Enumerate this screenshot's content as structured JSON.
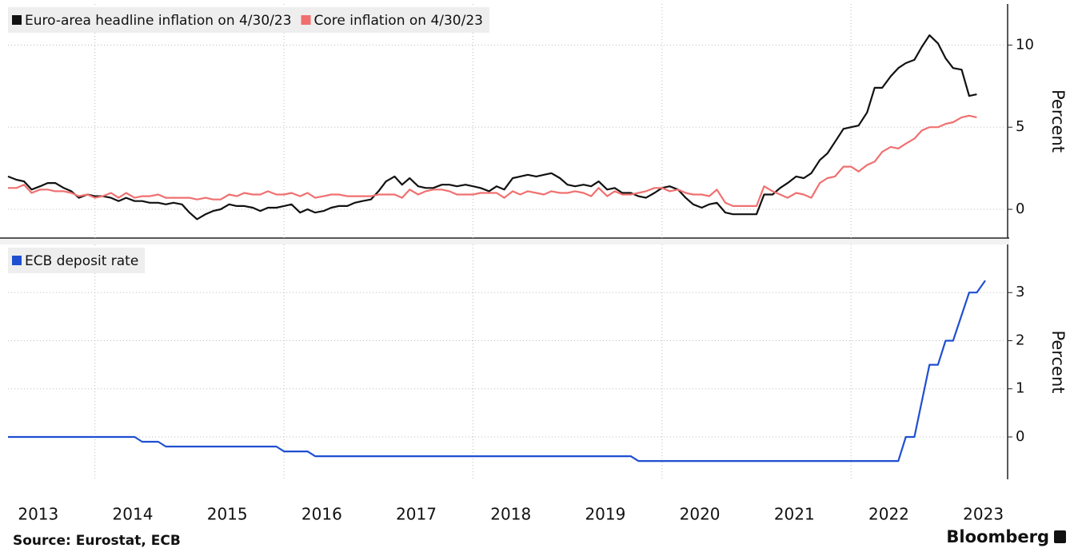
{
  "chart_data": [
    {
      "type": "line",
      "ylabel": "Percent",
      "ylim": [
        -1.75,
        12.5
      ],
      "yticks": [
        0,
        5,
        10
      ],
      "grid": true,
      "xlim": [
        2013.08,
        2023.64
      ],
      "xgrid": [
        2014,
        2016,
        2018,
        2020,
        2022
      ],
      "x": [
        2013.08,
        2013.17,
        2013.25,
        2013.33,
        2013.42,
        2013.5,
        2013.58,
        2013.67,
        2013.75,
        2013.83,
        2013.92,
        2014,
        2014.08,
        2014.17,
        2014.25,
        2014.33,
        2014.42,
        2014.5,
        2014.58,
        2014.67,
        2014.75,
        2014.83,
        2014.92,
        2015,
        2015.08,
        2015.17,
        2015.25,
        2015.33,
        2015.42,
        2015.5,
        2015.58,
        2015.67,
        2015.75,
        2015.83,
        2015.92,
        2016,
        2016.08,
        2016.17,
        2016.25,
        2016.33,
        2016.42,
        2016.5,
        2016.58,
        2016.67,
        2016.75,
        2016.83,
        2016.92,
        2017,
        2017.08,
        2017.17,
        2017.25,
        2017.33,
        2017.42,
        2017.5,
        2017.58,
        2017.67,
        2017.75,
        2017.83,
        2017.92,
        2018,
        2018.08,
        2018.17,
        2018.25,
        2018.33,
        2018.42,
        2018.5,
        2018.58,
        2018.67,
        2018.75,
        2018.83,
        2018.92,
        2019,
        2019.08,
        2019.17,
        2019.25,
        2019.33,
        2019.42,
        2019.5,
        2019.58,
        2019.67,
        2019.75,
        2019.83,
        2019.92,
        2020,
        2020.08,
        2020.17,
        2020.25,
        2020.33,
        2020.42,
        2020.5,
        2020.58,
        2020.67,
        2020.75,
        2020.83,
        2020.92,
        2021,
        2021.08,
        2021.17,
        2021.25,
        2021.33,
        2021.42,
        2021.5,
        2021.58,
        2021.67,
        2021.75,
        2021.83,
        2021.92,
        2022,
        2022.08,
        2022.17,
        2022.25,
        2022.33,
        2022.42,
        2022.5,
        2022.58,
        2022.67,
        2022.75,
        2022.83,
        2022.92,
        2023,
        2023.08,
        2023.17,
        2023.25,
        2023.33
      ],
      "series": [
        {
          "name": "Euro-area headline inflation on 4/30/23",
          "color": "#111111",
          "values": [
            2.0,
            1.8,
            1.7,
            1.2,
            1.4,
            1.6,
            1.6,
            1.3,
            1.1,
            0.7,
            0.9,
            0.8,
            0.8,
            0.7,
            0.5,
            0.7,
            0.5,
            0.5,
            0.4,
            0.4,
            0.3,
            0.4,
            0.3,
            -0.2,
            -0.6,
            -0.3,
            -0.1,
            0.0,
            0.3,
            0.2,
            0.2,
            0.1,
            -0.1,
            0.1,
            0.1,
            0.2,
            0.3,
            -0.2,
            0.0,
            -0.2,
            -0.1,
            0.1,
            0.2,
            0.2,
            0.4,
            0.5,
            0.6,
            1.1,
            1.7,
            2.0,
            1.5,
            1.9,
            1.4,
            1.3,
            1.3,
            1.5,
            1.5,
            1.4,
            1.5,
            1.4,
            1.3,
            1.1,
            1.4,
            1.2,
            1.9,
            2.0,
            2.1,
            2.0,
            2.1,
            2.2,
            1.9,
            1.5,
            1.4,
            1.5,
            1.4,
            1.7,
            1.2,
            1.3,
            1.0,
            1.0,
            0.8,
            0.7,
            1.0,
            1.3,
            1.4,
            1.2,
            0.7,
            0.3,
            0.1,
            0.3,
            0.4,
            -0.2,
            -0.3,
            -0.3,
            -0.3,
            -0.3,
            0.9,
            0.9,
            1.3,
            1.6,
            2.0,
            1.9,
            2.2,
            3.0,
            3.4,
            4.1,
            4.9,
            5.0,
            5.1,
            5.9,
            7.4,
            7.4,
            8.1,
            8.6,
            8.9,
            9.1,
            9.9,
            10.6,
            10.1,
            9.2,
            8.6,
            8.5,
            6.9,
            7.0
          ]
        },
        {
          "name": "Core inflation on 4/30/23",
          "color": "#f07070",
          "values": [
            1.3,
            1.3,
            1.5,
            1.0,
            1.2,
            1.2,
            1.1,
            1.1,
            1.0,
            0.8,
            0.9,
            0.7,
            0.8,
            1.0,
            0.7,
            1.0,
            0.7,
            0.8,
            0.8,
            0.9,
            0.7,
            0.7,
            0.7,
            0.7,
            0.6,
            0.7,
            0.6,
            0.6,
            0.9,
            0.8,
            1.0,
            0.9,
            0.9,
            1.1,
            0.9,
            0.9,
            1.0,
            0.8,
            1.0,
            0.7,
            0.8,
            0.9,
            0.9,
            0.8,
            0.8,
            0.8,
            0.8,
            0.9,
            0.9,
            0.9,
            0.7,
            1.2,
            0.9,
            1.1,
            1.2,
            1.2,
            1.1,
            0.9,
            0.9,
            0.9,
            1.0,
            1.0,
            1.0,
            0.7,
            1.1,
            0.9,
            1.1,
            1.0,
            0.9,
            1.1,
            1.0,
            1.0,
            1.1,
            1.0,
            0.8,
            1.3,
            0.8,
            1.1,
            0.9,
            0.9,
            1.0,
            1.1,
            1.3,
            1.3,
            1.1,
            1.2,
            1.0,
            0.9,
            0.9,
            0.8,
            1.2,
            0.4,
            0.2,
            0.2,
            0.2,
            0.2,
            1.4,
            1.1,
            0.9,
            0.7,
            1.0,
            0.9,
            0.7,
            1.6,
            1.9,
            2.0,
            2.6,
            2.6,
            2.3,
            2.7,
            2.9,
            3.5,
            3.8,
            3.7,
            4.0,
            4.3,
            4.8,
            5.0,
            5.0,
            5.2,
            5.3,
            5.6,
            5.7,
            5.6
          ]
        }
      ]
    },
    {
      "type": "line",
      "ylabel": "Percent",
      "ylim": [
        -0.88,
        4.0
      ],
      "yticks": [
        0,
        1,
        2,
        3
      ],
      "grid": true,
      "xlim": [
        2013.08,
        2023.64
      ],
      "xgrid": [
        2014,
        2016,
        2018,
        2020,
        2022
      ],
      "xticks": [
        {
          "value": 2013.4,
          "label": "2013"
        },
        {
          "value": 2014.4,
          "label": "2014"
        },
        {
          "value": 2015.4,
          "label": "2015"
        },
        {
          "value": 2016.4,
          "label": "2016"
        },
        {
          "value": 2017.4,
          "label": "2017"
        },
        {
          "value": 2018.4,
          "label": "2018"
        },
        {
          "value": 2019.4,
          "label": "2019"
        },
        {
          "value": 2020.4,
          "label": "2020"
        },
        {
          "value": 2021.4,
          "label": "2021"
        },
        {
          "value": 2022.4,
          "label": "2022"
        },
        {
          "value": 2023.4,
          "label": "2023"
        }
      ],
      "x": [
        2013.08,
        2014.42,
        2014.5,
        2014.67,
        2014.75,
        2015.92,
        2016.0,
        2016.25,
        2016.33,
        2019.67,
        2019.75,
        2022.5,
        2022.58,
        2022.67,
        2022.83,
        2022.92,
        2023.0,
        2023.08,
        2023.25,
        2023.33,
        2023.42
      ],
      "series": [
        {
          "name": "ECB deposit rate",
          "color": "#1f4fd1",
          "values": [
            0,
            0,
            -0.1,
            -0.1,
            -0.2,
            -0.2,
            -0.3,
            -0.3,
            -0.4,
            -0.4,
            -0.5,
            -0.5,
            0,
            0,
            1.5,
            1.5,
            2.0,
            2.0,
            3.0,
            3.0,
            3.25
          ]
        }
      ]
    }
  ],
  "source": "Source: Eurostat, ECB",
  "brand": "Bloomberg"
}
